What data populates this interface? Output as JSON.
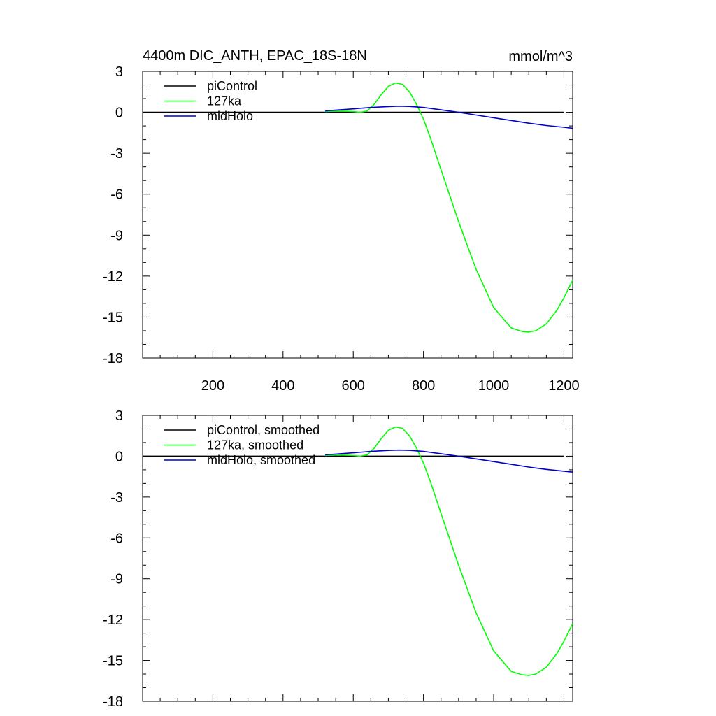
{
  "chart_data": [
    {
      "type": "line",
      "title": "4400m DIC_ANTH, EPAC_18S-18N",
      "units": "mmol/m^3",
      "xlabel": "",
      "ylabel": "",
      "xlim": [
        0,
        1225
      ],
      "ylim": [
        -18,
        3
      ],
      "xticks": [
        200,
        400,
        600,
        800,
        1000,
        1200
      ],
      "xtick_labels": [
        "200",
        "400",
        "600",
        "800",
        "1000",
        "1200"
      ],
      "yticks": [
        3,
        0,
        -3,
        -6,
        -9,
        -12,
        -15,
        -18
      ],
      "ytick_labels": [
        "3",
        "0",
        "-3",
        "-6",
        "-9",
        "-12",
        "-15",
        "-18"
      ],
      "legend_position": "top-left",
      "series": [
        {
          "name": "piControl",
          "color": "#000000",
          "x": [
            0,
            100,
            200,
            300,
            400,
            500,
            600,
            700,
            800,
            900,
            1000,
            1100,
            1200
          ],
          "y": [
            0,
            0,
            0,
            0,
            0,
            0,
            0,
            0,
            0,
            0,
            0,
            0,
            0
          ]
        },
        {
          "name": "127ka",
          "color": "#00ff00",
          "x": [
            520,
            560,
            600,
            620,
            640,
            660,
            680,
            700,
            720,
            740,
            760,
            780,
            800,
            820,
            850,
            900,
            950,
            1000,
            1050,
            1080,
            1100,
            1120,
            1150,
            1180,
            1200,
            1225
          ],
          "y": [
            0.05,
            0.1,
            0.05,
            0.0,
            0.1,
            0.6,
            1.3,
            1.9,
            2.15,
            2.05,
            1.5,
            0.6,
            -0.5,
            -1.9,
            -4.2,
            -8.0,
            -11.5,
            -14.3,
            -15.8,
            -16.05,
            -16.1,
            -16.0,
            -15.5,
            -14.5,
            -13.6,
            -12.3
          ]
        },
        {
          "name": "midHolo",
          "color": "#0000cc",
          "x": [
            520,
            600,
            650,
            700,
            730,
            760,
            800,
            850,
            900,
            950,
            1000,
            1050,
            1100,
            1150,
            1200,
            1225
          ],
          "y": [
            0.1,
            0.25,
            0.35,
            0.42,
            0.45,
            0.43,
            0.35,
            0.18,
            0.0,
            -0.2,
            -0.4,
            -0.6,
            -0.8,
            -0.97,
            -1.1,
            -1.17
          ]
        }
      ]
    },
    {
      "type": "line",
      "title": "",
      "units": "",
      "xlabel": "",
      "ylabel": "",
      "xlim": [
        0,
        1225
      ],
      "ylim": [
        -18,
        3
      ],
      "xticks": [
        200,
        400,
        600,
        800,
        1000,
        1200
      ],
      "xtick_labels": [],
      "yticks": [
        3,
        0,
        -3,
        -6,
        -9,
        -12,
        -15,
        -18
      ],
      "ytick_labels": [
        "3",
        "0",
        "-3",
        "-6",
        "-9",
        "-12",
        "-15",
        "-18"
      ],
      "legend_position": "top-left",
      "series": [
        {
          "name": "piControl, smoothed",
          "color": "#000000",
          "x": [
            0,
            100,
            200,
            300,
            400,
            500,
            600,
            700,
            800,
            900,
            1000,
            1100,
            1200
          ],
          "y": [
            0,
            0,
            0,
            0,
            0,
            0,
            0,
            0,
            0,
            0,
            0,
            0,
            0
          ]
        },
        {
          "name": "127ka, smoothed",
          "color": "#00ff00",
          "x": [
            520,
            560,
            600,
            620,
            640,
            660,
            680,
            700,
            720,
            740,
            760,
            780,
            800,
            820,
            850,
            900,
            950,
            1000,
            1050,
            1080,
            1100,
            1120,
            1150,
            1180,
            1200,
            1225
          ],
          "y": [
            0.05,
            0.1,
            0.05,
            0.0,
            0.1,
            0.6,
            1.3,
            1.9,
            2.15,
            2.05,
            1.5,
            0.6,
            -0.5,
            -1.9,
            -4.2,
            -8.0,
            -11.5,
            -14.3,
            -15.8,
            -16.05,
            -16.1,
            -16.0,
            -15.5,
            -14.5,
            -13.6,
            -12.3
          ]
        },
        {
          "name": "midHolo, smoothed",
          "color": "#0000cc",
          "x": [
            520,
            600,
            650,
            700,
            730,
            760,
            800,
            850,
            900,
            950,
            1000,
            1050,
            1100,
            1150,
            1200,
            1225
          ],
          "y": [
            0.1,
            0.25,
            0.35,
            0.42,
            0.45,
            0.43,
            0.35,
            0.18,
            0.0,
            -0.2,
            -0.4,
            -0.6,
            -0.8,
            -0.97,
            -1.1,
            -1.17
          ]
        }
      ]
    }
  ]
}
